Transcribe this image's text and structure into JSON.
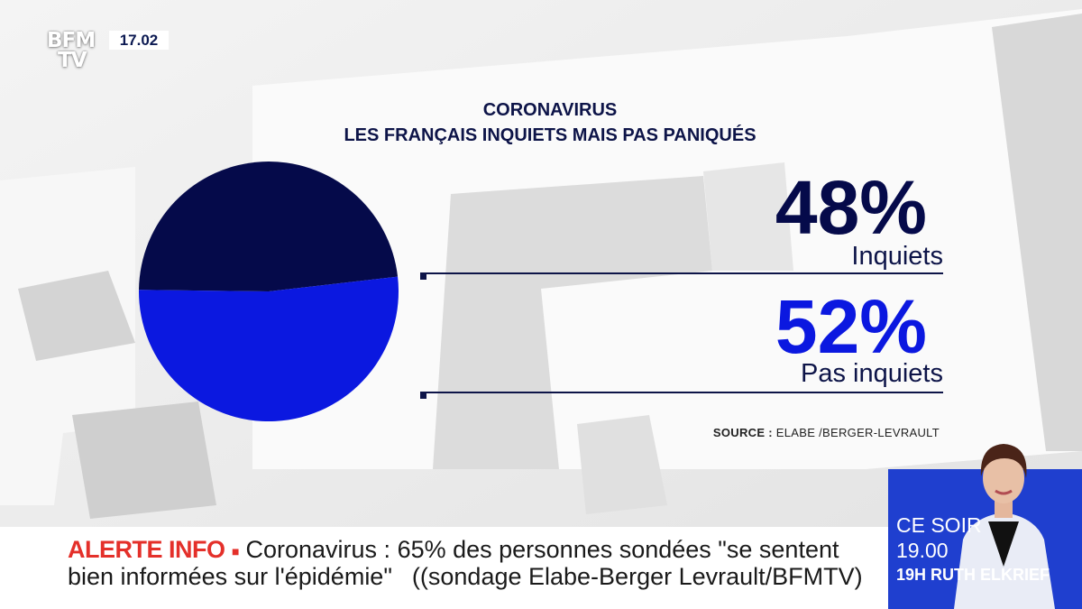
{
  "channel": {
    "logo_line1": "BFM",
    "logo_line2": "TV",
    "time": "17.02"
  },
  "chart_data": {
    "type": "pie",
    "title": "CORONAVIRUS\nLES FRANÇAIS INQUIETS MAIS PAS PANIQUÉS",
    "title_line1": "CORONAVIRUS",
    "title_line2": "LES FRANÇAIS INQUIETS MAIS PAS PANIQUÉS",
    "slices": [
      {
        "label": "Inquiets",
        "value": 48,
        "display": "48%",
        "color": "#050a4a"
      },
      {
        "label": "Pas inquiets",
        "value": 52,
        "display": "52%",
        "color": "#0b18e0"
      }
    ],
    "source_label": "SOURCE :",
    "source_text": "ELABE /BERGER-LEVRAULT"
  },
  "ticker": {
    "alert_label": "ALERTE INFO",
    "alert_marker": "■",
    "line1": "Coronavirus : 65% des personnes sondées \"se sentent",
    "line2_a": "bien informées sur l'épidémie\"",
    "line2_b": "((sondage Elabe-Berger Levrault/BFMTV)"
  },
  "promo": {
    "line1": "CE SOIR",
    "line2": "19.00",
    "line3": "19H RUTH ELKRIEF"
  },
  "colors": {
    "navy": "#050a4a",
    "blue": "#0b18e0",
    "alert_red": "#e4302a",
    "promo_blue": "#1f3fcf"
  }
}
